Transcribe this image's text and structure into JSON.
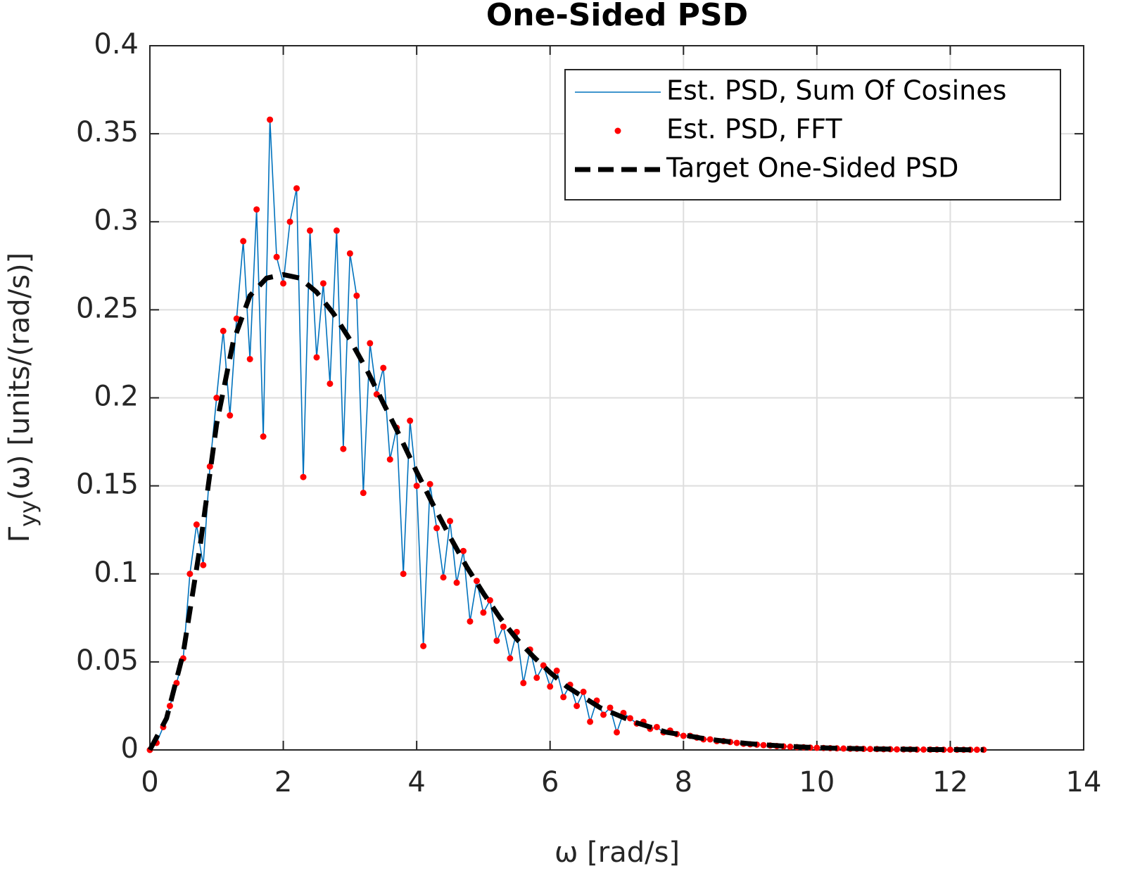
{
  "chart_data": {
    "type": "line",
    "title": "One-Sided PSD",
    "xlabel": "ω [rad/s]",
    "ylabel": {
      "symbol": "Γ",
      "subscript": "yy",
      "rest": "(ω) [units/(rad/s)]"
    },
    "xlim": [
      0,
      14
    ],
    "ylim": [
      0,
      0.4
    ],
    "xticks": [
      0,
      2,
      4,
      6,
      8,
      10,
      12,
      14
    ],
    "yticks": [
      0,
      0.05,
      0.1,
      0.15,
      0.2,
      0.25,
      0.3,
      0.35,
      0.4
    ],
    "grid": true,
    "legend": "upper right",
    "series": [
      {
        "name": "Est. PSD, Sum Of Cosines",
        "color": "#0072bd",
        "style": "line",
        "x": [
          0,
          0.1,
          0.2,
          0.3,
          0.4,
          0.5,
          0.6,
          0.7,
          0.8,
          0.9,
          1,
          1.1,
          1.2,
          1.3,
          1.4,
          1.5,
          1.6,
          1.7,
          1.8,
          1.9,
          2,
          2.1,
          2.2,
          2.3,
          2.4,
          2.5,
          2.6,
          2.7,
          2.8,
          2.9,
          3,
          3.1,
          3.2,
          3.3,
          3.4,
          3.5,
          3.6,
          3.7,
          3.8,
          3.9,
          4,
          4.1,
          4.2,
          4.3,
          4.4,
          4.5,
          4.6,
          4.7,
          4.8,
          4.9,
          5,
          5.1,
          5.2,
          5.3,
          5.4,
          5.5,
          5.6,
          5.7,
          5.8,
          5.9,
          6,
          6.1,
          6.2,
          6.3,
          6.4,
          6.5,
          6.6,
          6.7,
          6.8,
          6.9,
          7,
          7.1,
          7.2,
          7.3,
          7.4,
          7.5,
          7.6,
          7.7,
          7.8,
          7.9,
          8,
          8.1,
          8.2,
          8.3,
          8.4,
          8.5,
          8.6,
          8.7,
          8.8,
          8.9,
          9,
          9.1,
          9.2,
          9.3,
          9.4,
          9.5,
          9.6,
          9.7,
          9.8,
          9.9,
          10,
          10.1,
          10.2,
          10.3,
          10.4,
          10.5,
          10.6,
          10.7,
          10.8,
          10.9,
          11,
          11.1,
          11.2,
          11.3,
          11.4,
          11.5,
          11.6,
          11.7,
          11.8,
          11.9,
          12,
          12.1,
          12.2,
          12.3,
          12.4,
          12.5
        ],
        "values": [
          0,
          0.004,
          0.013,
          0.025,
          0.038,
          0.052,
          0.1,
          0.128,
          0.105,
          0.161,
          0.2,
          0.238,
          0.19,
          0.245,
          0.289,
          0.222,
          0.307,
          0.178,
          0.358,
          0.28,
          0.265,
          0.3,
          0.319,
          0.155,
          0.295,
          0.223,
          0.265,
          0.208,
          0.295,
          0.171,
          0.282,
          0.258,
          0.146,
          0.231,
          0.202,
          0.217,
          0.165,
          0.183,
          0.1,
          0.187,
          0.15,
          0.059,
          0.151,
          0.126,
          0.098,
          0.13,
          0.095,
          0.113,
          0.073,
          0.096,
          0.078,
          0.085,
          0.062,
          0.07,
          0.052,
          0.067,
          0.038,
          0.057,
          0.041,
          0.048,
          0.036,
          0.045,
          0.03,
          0.037,
          0.025,
          0.033,
          0.016,
          0.028,
          0.02,
          0.024,
          0.01,
          0.021,
          0.018,
          0.015,
          0.016,
          0.012,
          0.013,
          0.01,
          0.011,
          0.009,
          0.008,
          0.008,
          0.007,
          0.006,
          0.006,
          0.005,
          0.005,
          0.0045,
          0.004,
          0.0035,
          0.0032,
          0.003,
          0.0027,
          0.0025,
          0.0022,
          0.002,
          0.0018,
          0.0016,
          0.0015,
          0.0013,
          0.0012,
          0.0011,
          0.001,
          0.0009,
          0.0008,
          0.0007,
          0.0007,
          0.0006,
          0.0005,
          0.0005,
          0.0004,
          0.0004,
          0.0003,
          0.0003,
          0.0003,
          0.0002,
          0.0002,
          0.0002,
          0.0002,
          0.0001,
          0.0001,
          0.0001,
          0.0001,
          0.0001,
          0.0001,
          0.0001
        ]
      },
      {
        "name": "Est. PSD, FFT",
        "color": "#ff0000",
        "style": "marker",
        "x": [
          0,
          0.1,
          0.2,
          0.3,
          0.4,
          0.5,
          0.6,
          0.7,
          0.8,
          0.9,
          1,
          1.1,
          1.2,
          1.3,
          1.4,
          1.5,
          1.6,
          1.7,
          1.8,
          1.9,
          2,
          2.1,
          2.2,
          2.3,
          2.4,
          2.5,
          2.6,
          2.7,
          2.8,
          2.9,
          3,
          3.1,
          3.2,
          3.3,
          3.4,
          3.5,
          3.6,
          3.7,
          3.8,
          3.9,
          4,
          4.1,
          4.2,
          4.3,
          4.4,
          4.5,
          4.6,
          4.7,
          4.8,
          4.9,
          5,
          5.1,
          5.2,
          5.3,
          5.4,
          5.5,
          5.6,
          5.7,
          5.8,
          5.9,
          6,
          6.1,
          6.2,
          6.3,
          6.4,
          6.5,
          6.6,
          6.7,
          6.8,
          6.9,
          7,
          7.1,
          7.2,
          7.3,
          7.4,
          7.5,
          7.6,
          7.7,
          7.8,
          7.9,
          8,
          8.1,
          8.2,
          8.3,
          8.4,
          8.5,
          8.6,
          8.7,
          8.8,
          8.9,
          9,
          9.1,
          9.2,
          9.3,
          9.4,
          9.5,
          9.6,
          9.7,
          9.8,
          9.9,
          10,
          10.1,
          10.2,
          10.3,
          10.4,
          10.5,
          10.6,
          10.7,
          10.8,
          10.9,
          11,
          11.1,
          11.2,
          11.3,
          11.4,
          11.5,
          11.6,
          11.7,
          11.8,
          11.9,
          12,
          12.1,
          12.2,
          12.3,
          12.4,
          12.5
        ],
        "values": [
          0,
          0.004,
          0.013,
          0.025,
          0.038,
          0.052,
          0.1,
          0.128,
          0.105,
          0.161,
          0.2,
          0.238,
          0.19,
          0.245,
          0.289,
          0.222,
          0.307,
          0.178,
          0.358,
          0.28,
          0.265,
          0.3,
          0.319,
          0.155,
          0.295,
          0.223,
          0.265,
          0.208,
          0.295,
          0.171,
          0.282,
          0.258,
          0.146,
          0.231,
          0.202,
          0.217,
          0.165,
          0.183,
          0.1,
          0.187,
          0.15,
          0.059,
          0.151,
          0.126,
          0.098,
          0.13,
          0.095,
          0.113,
          0.073,
          0.096,
          0.078,
          0.085,
          0.062,
          0.07,
          0.052,
          0.067,
          0.038,
          0.057,
          0.041,
          0.048,
          0.036,
          0.045,
          0.03,
          0.037,
          0.025,
          0.033,
          0.016,
          0.028,
          0.02,
          0.024,
          0.01,
          0.021,
          0.018,
          0.015,
          0.016,
          0.012,
          0.013,
          0.01,
          0.011,
          0.009,
          0.008,
          0.008,
          0.007,
          0.006,
          0.006,
          0.005,
          0.005,
          0.0045,
          0.004,
          0.0035,
          0.0032,
          0.003,
          0.0027,
          0.0025,
          0.0022,
          0.002,
          0.0018,
          0.0016,
          0.0015,
          0.0013,
          0.0012,
          0.0011,
          0.001,
          0.0009,
          0.0008,
          0.0007,
          0.0007,
          0.0006,
          0.0005,
          0.0005,
          0.0004,
          0.0004,
          0.0003,
          0.0003,
          0.0003,
          0.0002,
          0.0002,
          0.0002,
          0.0002,
          0.0001,
          0.0001,
          0.0001,
          0.0001,
          0.0001,
          0.0001,
          0.0001
        ]
      },
      {
        "name": "Target One-Sided PSD",
        "color": "#000000",
        "style": "dashed",
        "x": [
          0,
          0.25,
          0.5,
          0.75,
          1,
          1.25,
          1.5,
          1.75,
          2,
          2.25,
          2.5,
          2.75,
          3,
          3.25,
          3.5,
          3.75,
          4,
          4.25,
          4.5,
          4.75,
          5,
          5.25,
          5.5,
          5.75,
          6,
          6.25,
          6.5,
          6.75,
          7,
          7.25,
          7.5,
          7.75,
          8,
          8.25,
          8.5,
          8.75,
          9,
          9.25,
          9.5,
          9.75,
          10,
          10.25,
          10.5,
          10.75,
          11,
          11.25,
          11.5,
          11.75,
          12,
          12.25,
          12.5
        ],
        "values": [
          0,
          0.018,
          0.055,
          0.115,
          0.185,
          0.232,
          0.258,
          0.268,
          0.27,
          0.268,
          0.26,
          0.248,
          0.233,
          0.216,
          0.197,
          0.178,
          0.158,
          0.139,
          0.121,
          0.104,
          0.089,
          0.075,
          0.063,
          0.053,
          0.044,
          0.036,
          0.03,
          0.024,
          0.02,
          0.016,
          0.013,
          0.01,
          0.0085,
          0.0068,
          0.0055,
          0.0044,
          0.0035,
          0.0028,
          0.0022,
          0.0017,
          0.0013,
          0.001,
          0.0008,
          0.0006,
          0.0005,
          0.0004,
          0.0003,
          0.0002,
          0.0002,
          0.0001,
          0.0001
        ]
      }
    ]
  }
}
